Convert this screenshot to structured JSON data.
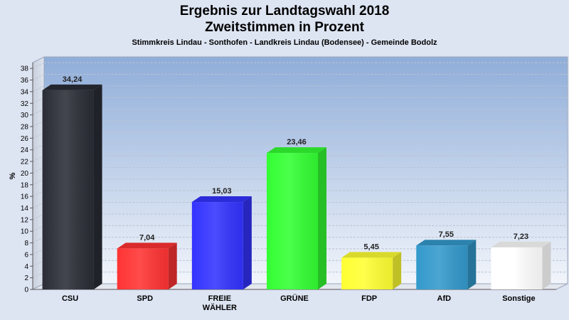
{
  "chart_data": {
    "type": "bar",
    "title": "Ergebnis zur Landtagswahl 2018",
    "subtitle": "Zweitstimmen in Prozent",
    "caption": "Stimmkreis Lindau - Sonthofen - Landkreis Lindau (Bodensee) - Gemeinde Bodolz",
    "xlabel": "",
    "ylabel": "%",
    "ylim": [
      0,
      39
    ],
    "yticks": [
      0,
      2,
      4,
      6,
      8,
      10,
      12,
      14,
      16,
      18,
      20,
      22,
      24,
      26,
      28,
      30,
      32,
      34,
      36,
      38
    ],
    "categories": [
      "CSU",
      "SPD",
      "FREIE WÄHLER",
      "GRÜNE",
      "FDP",
      "AfD",
      "Sonstige"
    ],
    "category_lines": [
      [
        "CSU"
      ],
      [
        "SPD"
      ],
      [
        "FREIE",
        "WÄHLER"
      ],
      [
        "GRÜNE"
      ],
      [
        "FDP"
      ],
      [
        "AfD"
      ],
      [
        "Sonstige"
      ]
    ],
    "values": [
      34.24,
      7.04,
      15.03,
      23.46,
      5.45,
      7.55,
      7.23
    ],
    "value_labels": [
      "34,24",
      "7,04",
      "15,03",
      "23,46",
      "5,45",
      "7,55",
      "7,23"
    ],
    "colors": [
      "#2a2d36",
      "#ff3333",
      "#3333ff",
      "#33ff33",
      "#ffff33",
      "#3399cc",
      "#ffffff"
    ],
    "grid": true,
    "legend": "none"
  }
}
